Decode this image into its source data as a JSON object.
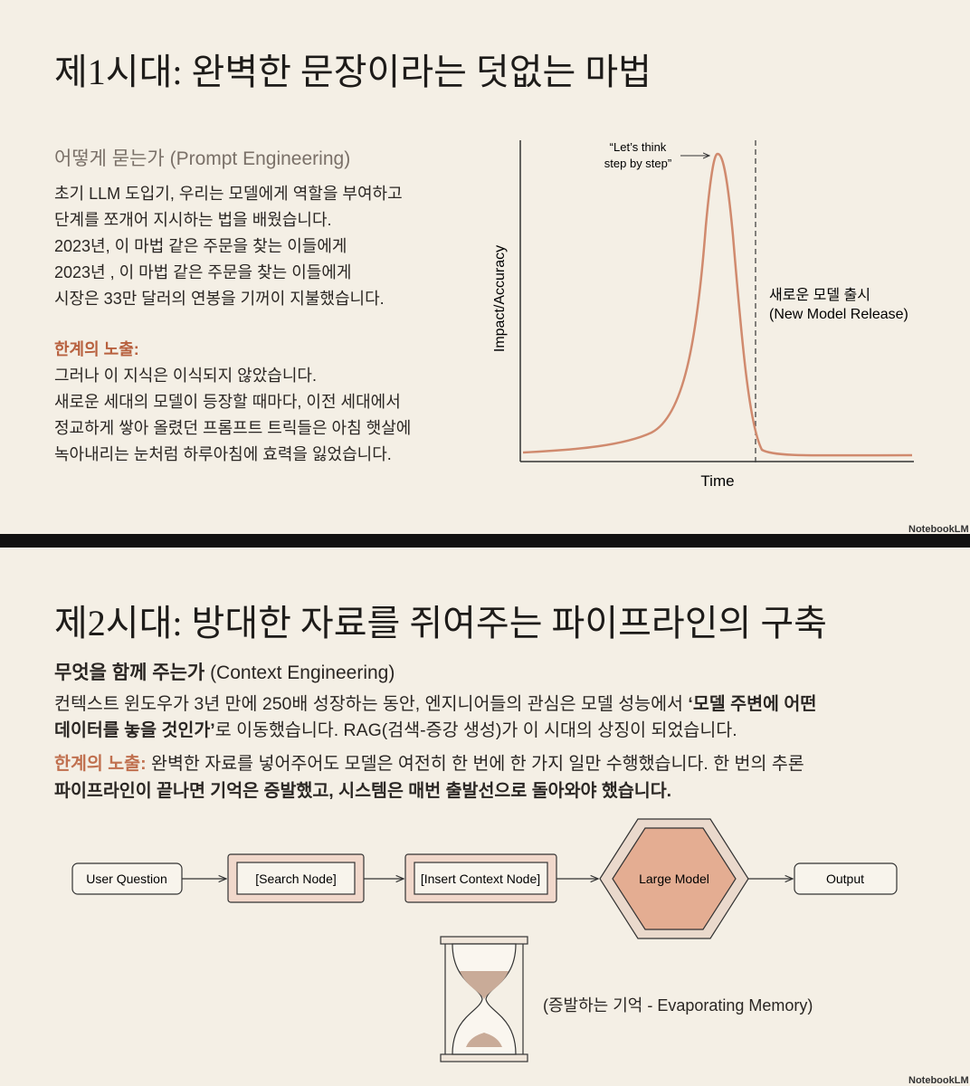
{
  "slide1": {
    "title": "제1시대: 완벽한 문장이라는 덧없는 마법",
    "subtitle": "어떻게 묻는가 (Prompt Engineering)",
    "body": [
      "초기 LLM 도입기, 우리는 모델에게 역할을 부여하고",
      "단계를 쪼개어 지시하는 법을 배웠습니다.",
      "2023년, 이 마법 같은 주문을 찾는 이들에게",
      "2023년 , 이 마법 같은 주문을 찾는 이들에게",
      "시장은 33만 달러의 연봉을 기꺼이 지불했습니다."
    ],
    "limit_heading": "한계의 노출:",
    "limit_body": [
      "그러나 이 지식은 이식되지 않았습니다.",
      "새로운 세대의 모델이 등장할 때마다, 이전 세대에서",
      "정교하게 쌓아 올렸던 프롬프트 트릭들은 아침 햇살에",
      "녹아내리는 눈처럼 하루아침에 효력을 잃었습니다."
    ],
    "figure": {
      "annotation": [
        "“Let’s think",
        "step by step”"
      ],
      "y_label": "Impact/Accuracy",
      "x_label": "Time",
      "release_label": [
        "새로운 모델 출시",
        "(New Model Release)"
      ]
    },
    "brand": "NotebookLM"
  },
  "slide2": {
    "title": "제2시대: 방대한 자료를 쥐여주는 파이프라인의 구축",
    "subtitle": [
      {
        "text": "무엇을 함께 주는가",
        "bold": true
      },
      {
        "text": " (Context Engineering)"
      }
    ],
    "body": [
      [
        {
          "text": "컨텍스트 윈도우가 3년 만에 250배 성장하는 동안, 엔지니어들의 관심은 모델 성능에서 "
        },
        {
          "text": "‘모델 주변에 어떤",
          "bold": true
        }
      ],
      [
        {
          "text": "데이터를 놓을 것인가’",
          "bold": true
        },
        {
          "text": "로 이동했습니다. RAG(검색-증강 생성)가 이 시대의 상징이 되었습니다."
        }
      ],
      [
        {
          "text": "한계의 노출:",
          "bold": true,
          "color": "#c0704f"
        },
        {
          "text": " 완벽한 자료를 넣어주어도 모델은 여전히 한 번에 한 가지 일만 수행했습니다. 한 번의 추론"
        }
      ],
      [
        {
          "text": "파이프라인이 끝나면 기억은 증발했고, 시스템은 매번 출발선으로 돌아와야 했습니다.",
          "bold": true
        }
      ]
    ],
    "nodes": [
      "User Question",
      "[Search Node]",
      "[Insert Context Node]",
      "Large Model",
      "Output"
    ],
    "memory_label": "(증발하는 기억 - Evaporating Memory)",
    "brand": "NotebookLM"
  }
}
